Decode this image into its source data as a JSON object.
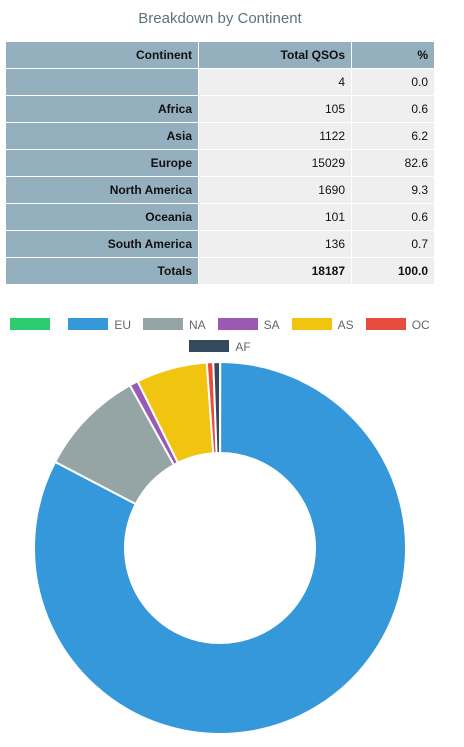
{
  "title": "Breakdown by Continent",
  "table": {
    "headers": [
      "Continent",
      "Total QSOs",
      "%"
    ],
    "rows": [
      {
        "continent": "",
        "total": "4",
        "pct": "0.0"
      },
      {
        "continent": "Africa",
        "total": "105",
        "pct": "0.6"
      },
      {
        "continent": "Asia",
        "total": "1122",
        "pct": "6.2"
      },
      {
        "continent": "Europe",
        "total": "15029",
        "pct": "82.6"
      },
      {
        "continent": "North America",
        "total": "1690",
        "pct": "9.3"
      },
      {
        "continent": "Oceania",
        "total": "101",
        "pct": "0.6"
      },
      {
        "continent": "South America",
        "total": "136",
        "pct": "0.7"
      }
    ],
    "totals": {
      "label": "Totals",
      "total": "18187",
      "pct": "100.0"
    }
  },
  "chart_data": {
    "type": "pie",
    "donut": true,
    "legend_position": "top",
    "slices": [
      {
        "label": "",
        "value": 4,
        "color": "#2ecc71"
      },
      {
        "label": "EU",
        "value": 15029,
        "color": "#3498db"
      },
      {
        "label": "NA",
        "value": 1690,
        "color": "#95a5a6"
      },
      {
        "label": "SA",
        "value": 136,
        "color": "#9b59b6"
      },
      {
        "label": "AS",
        "value": 1122,
        "color": "#f1c40f"
      },
      {
        "label": "OC",
        "value": 101,
        "color": "#e74c3c"
      },
      {
        "label": "AF",
        "value": 105,
        "color": "#34495e"
      }
    ]
  }
}
